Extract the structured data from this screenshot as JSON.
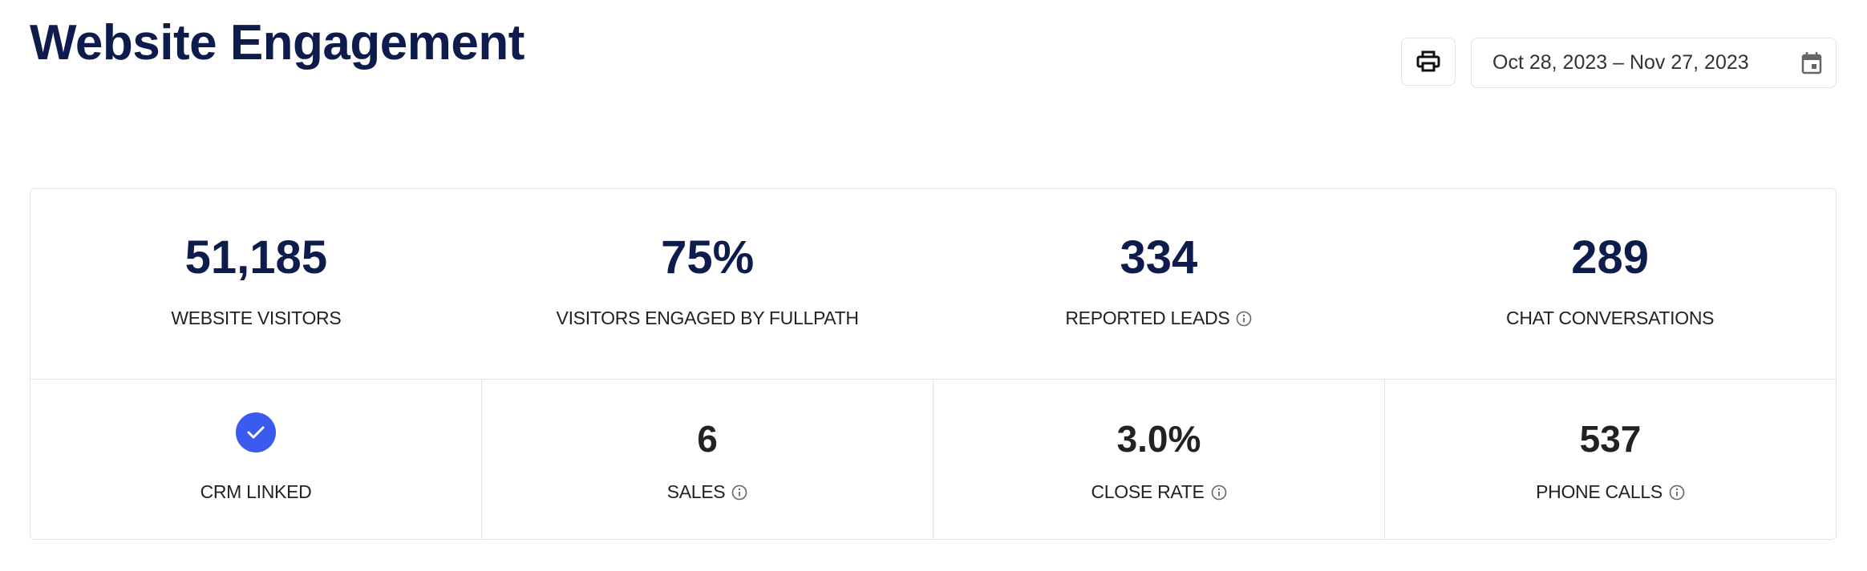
{
  "header": {
    "title": "Website Engagement",
    "date_range": "Oct 28, 2023 – Nov 27, 2023"
  },
  "summary": [
    {
      "value": "51,185",
      "label": "WEBSITE VISITORS"
    },
    {
      "value": "75%",
      "label": "VISITORS ENGAGED BY FULLPATH"
    },
    {
      "value": "334",
      "label": "REPORTED LEADS"
    },
    {
      "value": "289",
      "label": "CHAT CONVERSATIONS"
    }
  ],
  "details": [
    {
      "label": "CRM LINKED"
    },
    {
      "value": "6",
      "label": "SALES"
    },
    {
      "value": "3.0%",
      "label": "CLOSE RATE"
    },
    {
      "value": "537",
      "label": "PHONE CALLS"
    }
  ]
}
